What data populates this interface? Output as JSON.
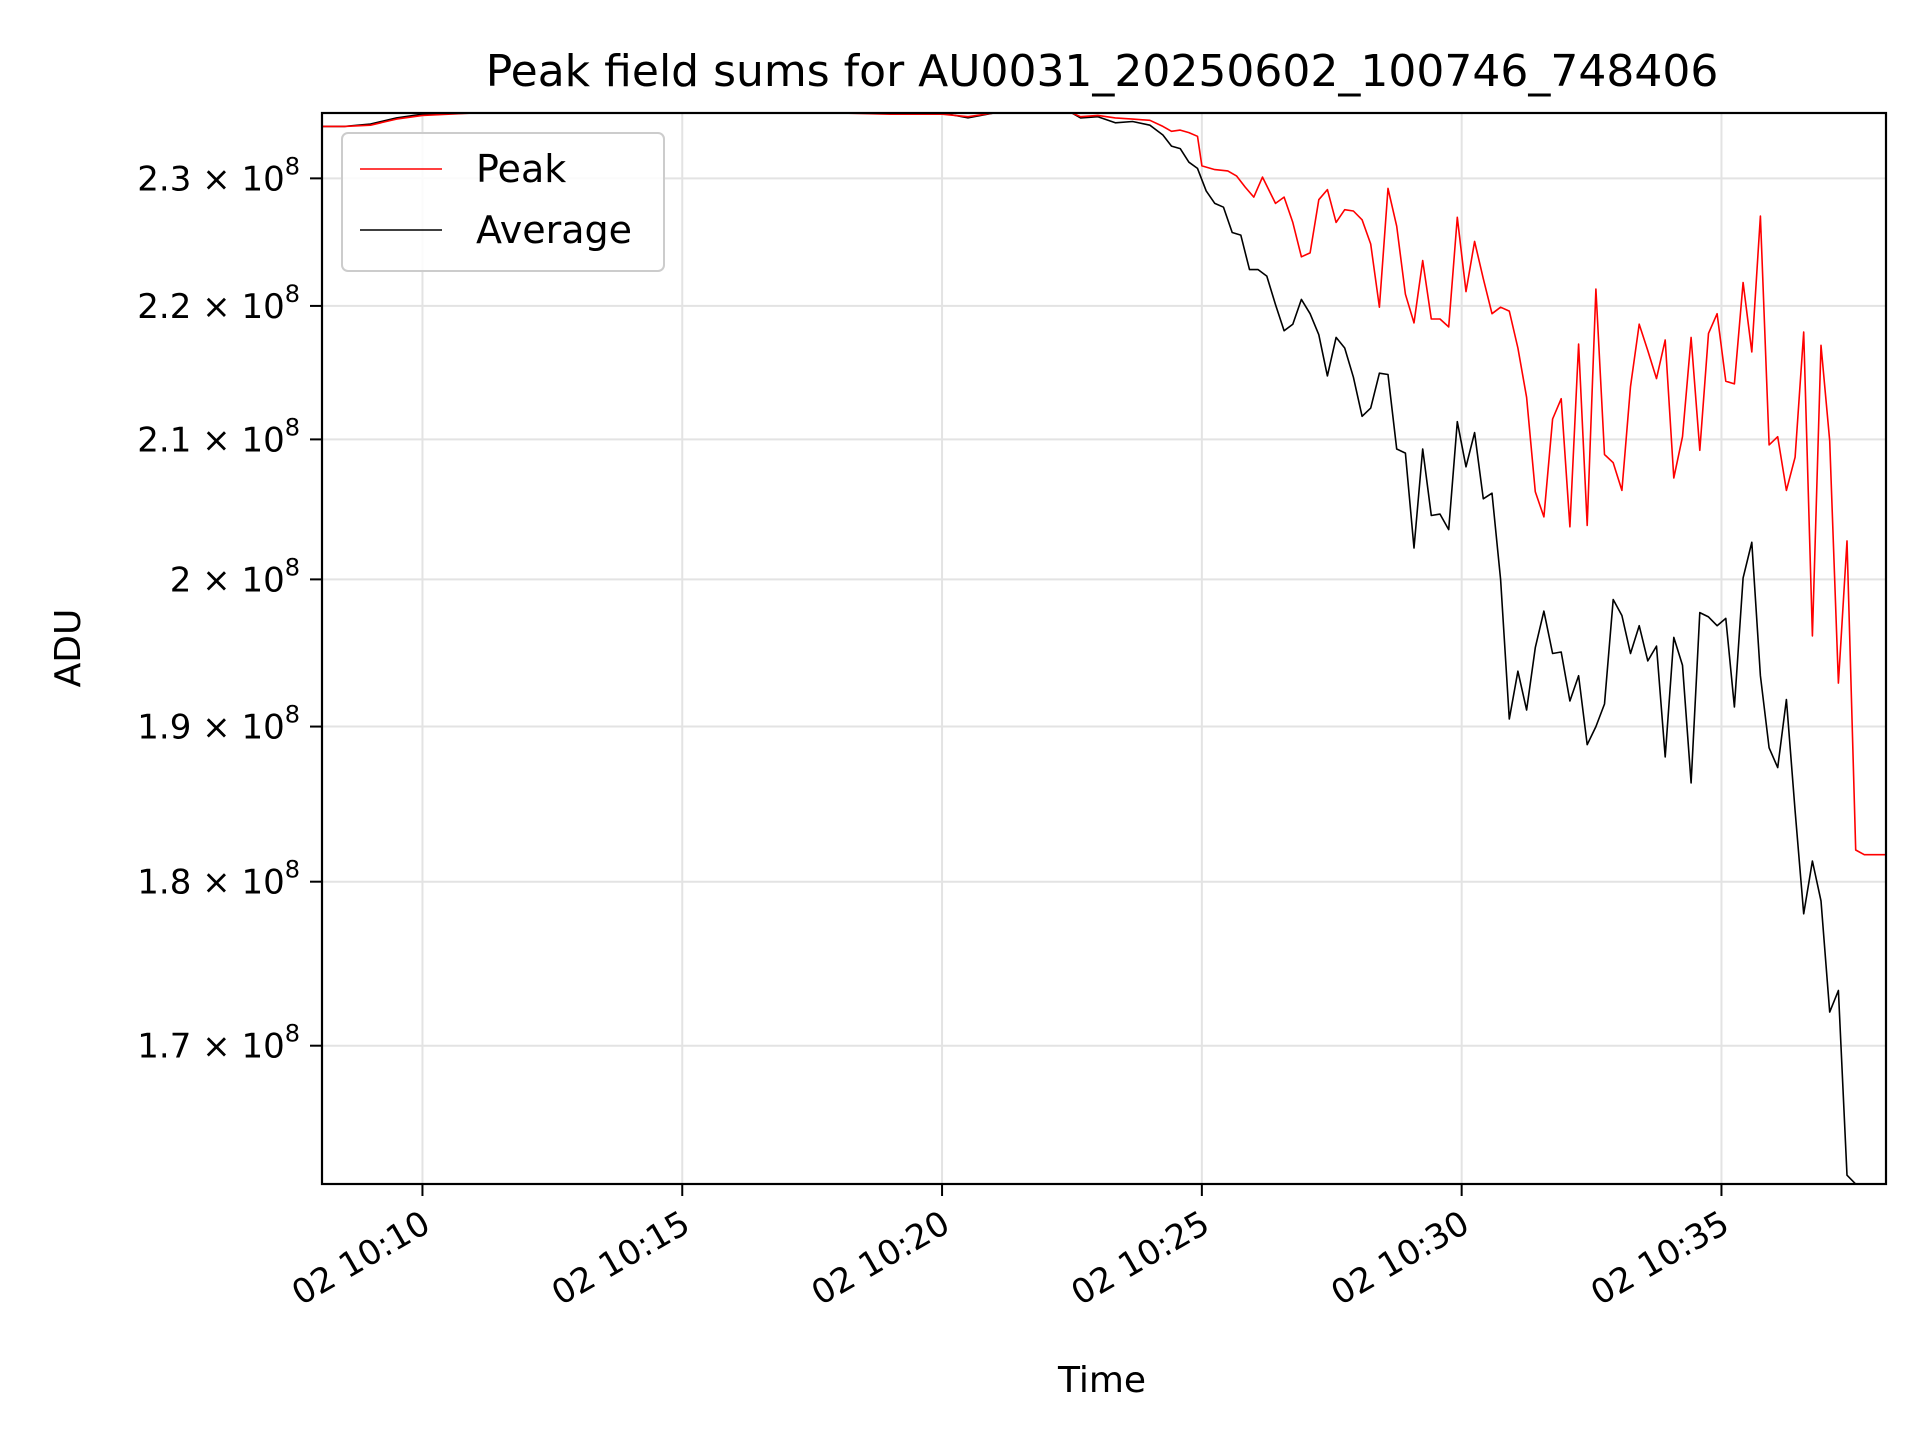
{
  "chart_data": {
    "type": "line",
    "title": "Peak field sums for AU0031_20250602_100746_748406",
    "xlabel": "Time",
    "ylabel": "ADU",
    "y_scale": "log",
    "xlim": [
      "10:08:04",
      "10:38:10"
    ],
    "ylim": [
      162000000,
      235300000
    ],
    "grid": true,
    "legend_position": "upper-left",
    "x_ticks": [
      {
        "value": "10:10:00",
        "label": "02 10:10"
      },
      {
        "value": "10:15:00",
        "label": "02 10:15"
      },
      {
        "value": "10:20:00",
        "label": "02 10:20"
      },
      {
        "value": "10:25:00",
        "label": "02 10:25"
      },
      {
        "value": "10:30:00",
        "label": "02 10:30"
      },
      {
        "value": "10:35:00",
        "label": "02 10:35"
      }
    ],
    "y_ticks": [
      {
        "value": 170000000,
        "mantissa": "1.7 × 10",
        "exp": "8"
      },
      {
        "value": 180000000,
        "mantissa": "1.8 × 10",
        "exp": "8"
      },
      {
        "value": 190000000,
        "mantissa": "1.9 × 10",
        "exp": "8"
      },
      {
        "value": 200000000,
        "mantissa": "2 × 10",
        "exp": "8"
      },
      {
        "value": 210000000,
        "mantissa": "2.1 × 10",
        "exp": "8"
      },
      {
        "value": 220000000,
        "mantissa": "2.2 × 10",
        "exp": "8"
      },
      {
        "value": 230000000,
        "mantissa": "2.3 × 10",
        "exp": "8"
      }
    ],
    "series": [
      {
        "name": "Peak",
        "color": "#ff0000",
        "points": [
          [
            "10:08:04",
            234200000
          ],
          [
            "10:08:30",
            234200000
          ],
          [
            "10:09:00",
            234300000
          ],
          [
            "10:09:30",
            234800000
          ],
          [
            "10:10:00",
            235100000
          ],
          [
            "10:11:00",
            235300000
          ],
          [
            "10:18:00",
            235300000
          ],
          [
            "10:19:00",
            235200000
          ],
          [
            "10:20:00",
            235200000
          ],
          [
            "10:20:30",
            235000000
          ],
          [
            "10:21:00",
            235300000
          ],
          [
            "10:22:30",
            235300000
          ],
          [
            "10:22:40",
            235000000
          ],
          [
            "10:23:00",
            235100000
          ],
          [
            "10:23:20",
            234900000
          ],
          [
            "10:23:40",
            234800000
          ],
          [
            "10:24:00",
            234700000
          ],
          [
            "10:24:15",
            234200000
          ],
          [
            "10:24:25",
            233800000
          ],
          [
            "10:24:35",
            233900000
          ],
          [
            "10:24:45",
            233700000
          ],
          [
            "10:24:55",
            233400000
          ],
          [
            "10:25:00",
            231000000
          ],
          [
            "10:25:15",
            230700000
          ],
          [
            "10:25:30",
            230600000
          ],
          [
            "10:25:40",
            230200000
          ],
          [
            "10:25:50",
            229300000
          ],
          [
            "10:26:00",
            228500000
          ],
          [
            "10:26:10",
            230100000
          ],
          [
            "10:26:25",
            228000000
          ],
          [
            "10:26:35",
            228500000
          ],
          [
            "10:26:45",
            226500000
          ],
          [
            "10:26:55",
            223800000
          ],
          [
            "10:27:05",
            224100000
          ],
          [
            "10:27:15",
            228300000
          ],
          [
            "10:27:25",
            229100000
          ],
          [
            "10:27:35",
            226500000
          ],
          [
            "10:27:45",
            227500000
          ],
          [
            "10:27:55",
            227400000
          ],
          [
            "10:28:05",
            226700000
          ],
          [
            "10:28:15",
            224800000
          ],
          [
            "10:28:25",
            219900000
          ],
          [
            "10:28:35",
            229200000
          ],
          [
            "10:28:45",
            226200000
          ],
          [
            "10:28:55",
            220900000
          ],
          [
            "10:29:05",
            218700000
          ],
          [
            "10:29:15",
            223500000
          ],
          [
            "10:29:25",
            219000000
          ],
          [
            "10:29:35",
            219000000
          ],
          [
            "10:29:45",
            218400000
          ],
          [
            "10:29:55",
            226900000
          ],
          [
            "10:30:05",
            221100000
          ],
          [
            "10:30:15",
            225000000
          ],
          [
            "10:30:25",
            222100000
          ],
          [
            "10:30:35",
            219400000
          ],
          [
            "10:30:45",
            219900000
          ],
          [
            "10:30:55",
            219600000
          ],
          [
            "10:31:05",
            216800000
          ],
          [
            "10:31:15",
            213100000
          ],
          [
            "10:31:25",
            206200000
          ],
          [
            "10:31:35",
            204400000
          ],
          [
            "10:31:45",
            211500000
          ],
          [
            "10:31:55",
            213000000
          ],
          [
            "10:32:05",
            203700000
          ],
          [
            "10:32:15",
            217100000
          ],
          [
            "10:32:25",
            203800000
          ],
          [
            "10:32:35",
            221300000
          ],
          [
            "10:32:45",
            208900000
          ],
          [
            "10:32:55",
            208300000
          ],
          [
            "10:33:05",
            206300000
          ],
          [
            "10:33:15",
            213900000
          ],
          [
            "10:33:25",
            218600000
          ],
          [
            "10:33:35",
            216600000
          ],
          [
            "10:33:45",
            214500000
          ],
          [
            "10:33:55",
            217400000
          ],
          [
            "10:34:05",
            207200000
          ],
          [
            "10:34:15",
            210200000
          ],
          [
            "10:34:25",
            217600000
          ],
          [
            "10:34:35",
            209200000
          ],
          [
            "10:34:45",
            217900000
          ],
          [
            "10:34:55",
            219400000
          ],
          [
            "10:35:05",
            214300000
          ],
          [
            "10:35:15",
            214100000
          ],
          [
            "10:35:25",
            221800000
          ],
          [
            "10:35:35",
            216500000
          ],
          [
            "10:35:45",
            227000000
          ],
          [
            "10:35:55",
            209600000
          ],
          [
            "10:36:05",
            210200000
          ],
          [
            "10:36:15",
            206300000
          ],
          [
            "10:36:25",
            208700000
          ],
          [
            "10:36:35",
            218000000
          ],
          [
            "10:36:45",
            196100000
          ],
          [
            "10:36:55",
            217000000
          ],
          [
            "10:37:05",
            209900000
          ],
          [
            "10:37:15",
            192900000
          ],
          [
            "10:37:25",
            202700000
          ],
          [
            "10:37:35",
            182000000
          ],
          [
            "10:37:45",
            181700000
          ],
          [
            "10:38:10",
            181700000
          ]
        ]
      },
      {
        "name": "Average",
        "color": "#000000",
        "points": [
          [
            "10:08:04",
            234200000
          ],
          [
            "10:08:30",
            234200000
          ],
          [
            "10:09:00",
            234400000
          ],
          [
            "10:09:30",
            234900000
          ],
          [
            "10:10:00",
            235200000
          ],
          [
            "10:11:00",
            235300000
          ],
          [
            "10:18:00",
            235300000
          ],
          [
            "10:19:00",
            235300000
          ],
          [
            "10:20:00",
            235300000
          ],
          [
            "10:20:30",
            234900000
          ],
          [
            "10:21:00",
            235300000
          ],
          [
            "10:22:30",
            235300000
          ],
          [
            "10:22:40",
            234900000
          ],
          [
            "10:23:00",
            235000000
          ],
          [
            "10:23:20",
            234500000
          ],
          [
            "10:23:40",
            234600000
          ],
          [
            "10:24:00",
            234300000
          ],
          [
            "10:24:15",
            233500000
          ],
          [
            "10:24:25",
            232600000
          ],
          [
            "10:24:35",
            232400000
          ],
          [
            "10:24:45",
            231300000
          ],
          [
            "10:24:55",
            230800000
          ],
          [
            "10:25:05",
            229000000
          ],
          [
            "10:25:15",
            228000000
          ],
          [
            "10:25:25",
            227700000
          ],
          [
            "10:25:35",
            225700000
          ],
          [
            "10:25:45",
            225500000
          ],
          [
            "10:25:55",
            222800000
          ],
          [
            "10:26:05",
            222800000
          ],
          [
            "10:26:15",
            222300000
          ],
          [
            "10:26:25",
            220100000
          ],
          [
            "10:26:35",
            218100000
          ],
          [
            "10:26:45",
            218600000
          ],
          [
            "10:26:55",
            220500000
          ],
          [
            "10:27:05",
            219400000
          ],
          [
            "10:27:15",
            217800000
          ],
          [
            "10:27:25",
            214700000
          ],
          [
            "10:27:35",
            217600000
          ],
          [
            "10:27:45",
            216800000
          ],
          [
            "10:27:55",
            214600000
          ],
          [
            "10:28:05",
            211700000
          ],
          [
            "10:28:15",
            212300000
          ],
          [
            "10:28:25",
            214900000
          ],
          [
            "10:28:35",
            214800000
          ],
          [
            "10:28:45",
            209300000
          ],
          [
            "10:28:55",
            209000000
          ],
          [
            "10:29:05",
            202200000
          ],
          [
            "10:29:15",
            209300000
          ],
          [
            "10:29:25",
            204500000
          ],
          [
            "10:29:35",
            204600000
          ],
          [
            "10:29:45",
            203500000
          ],
          [
            "10:29:55",
            211300000
          ],
          [
            "10:30:05",
            208000000
          ],
          [
            "10:30:15",
            210500000
          ],
          [
            "10:30:25",
            205700000
          ],
          [
            "10:30:35",
            206100000
          ],
          [
            "10:30:45",
            200000000
          ],
          [
            "10:30:55",
            190500000
          ],
          [
            "10:31:05",
            193700000
          ],
          [
            "10:31:15",
            191100000
          ],
          [
            "10:31:25",
            195300000
          ],
          [
            "10:31:35",
            197800000
          ],
          [
            "10:31:45",
            194900000
          ],
          [
            "10:31:55",
            195000000
          ],
          [
            "10:32:05",
            191700000
          ],
          [
            "10:32:15",
            193400000
          ],
          [
            "10:32:25",
            188800000
          ],
          [
            "10:32:35",
            190000000
          ],
          [
            "10:32:45",
            191500000
          ],
          [
            "10:32:55",
            198600000
          ],
          [
            "10:33:05",
            197500000
          ],
          [
            "10:33:15",
            194900000
          ],
          [
            "10:33:25",
            196800000
          ],
          [
            "10:33:35",
            194400000
          ],
          [
            "10:33:45",
            195400000
          ],
          [
            "10:33:55",
            188000000
          ],
          [
            "10:34:05",
            196000000
          ],
          [
            "10:34:15",
            194100000
          ],
          [
            "10:34:25",
            186300000
          ],
          [
            "10:34:35",
            197700000
          ],
          [
            "10:34:45",
            197400000
          ],
          [
            "10:34:55",
            196800000
          ],
          [
            "10:35:05",
            197300000
          ],
          [
            "10:35:15",
            191300000
          ],
          [
            "10:35:25",
            200100000
          ],
          [
            "10:35:35",
            202600000
          ],
          [
            "10:35:45",
            193400000
          ],
          [
            "10:35:55",
            188600000
          ],
          [
            "10:36:05",
            187300000
          ],
          [
            "10:36:15",
            191800000
          ],
          [
            "10:36:25",
            184500000
          ],
          [
            "10:36:35",
            178000000
          ],
          [
            "10:36:45",
            181300000
          ],
          [
            "10:36:55",
            178800000
          ],
          [
            "10:37:05",
            172000000
          ],
          [
            "10:37:15",
            173300000
          ],
          [
            "10:37:25",
            162500000
          ],
          [
            "10:37:35",
            162000000
          ]
        ]
      }
    ]
  }
}
